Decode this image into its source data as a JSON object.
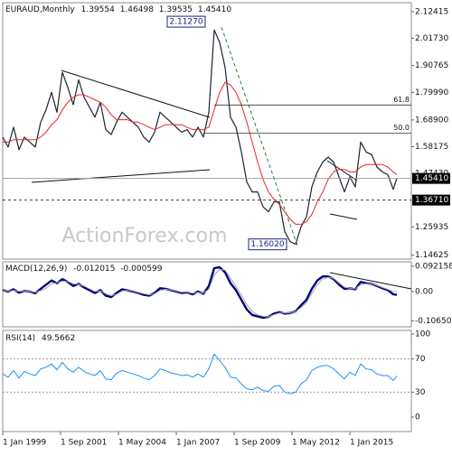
{
  "chart_data": {
    "type": "line",
    "title": "EURAUD,Monthly",
    "quote": [
      "1.39554",
      "1.46498",
      "1.39535",
      "1.45410"
    ],
    "watermark": "ActionForex.com",
    "x": [
      "1999-01",
      "1999-04",
      "1999-07",
      "1999-10",
      "2000-01",
      "2000-04",
      "2000-07",
      "2000-10",
      "2001-01",
      "2001-04",
      "2001-07",
      "2001-10",
      "2002-01",
      "2002-04",
      "2002-07",
      "2002-10",
      "2003-01",
      "2003-04",
      "2003-07",
      "2003-10",
      "2004-01",
      "2004-04",
      "2004-07",
      "2004-10",
      "2005-01",
      "2005-04",
      "2005-07",
      "2005-10",
      "2006-01",
      "2006-04",
      "2006-07",
      "2006-10",
      "2007-01",
      "2007-04",
      "2007-07",
      "2007-10",
      "2008-01",
      "2008-04",
      "2008-07",
      "2008-10",
      "2009-01",
      "2009-04",
      "2009-07",
      "2009-10",
      "2010-01",
      "2010-04",
      "2010-07",
      "2010-10",
      "2011-01",
      "2011-04",
      "2011-07",
      "2011-10",
      "2012-01",
      "2012-04",
      "2012-07",
      "2012-10",
      "2013-01",
      "2013-04",
      "2013-07",
      "2013-10",
      "2014-01",
      "2014-04",
      "2014-07",
      "2014-10",
      "2015-01",
      "2015-04",
      "2015-07",
      "2015-10",
      "2016-01",
      "2016-04",
      "2016-07",
      "2016-10",
      "2017-01",
      "2017-03"
    ],
    "xticks": [
      {
        "value": "1999-01",
        "label": "1 Jan 1999"
      },
      {
        "value": "2001-09",
        "label": "1 Sep 2001"
      },
      {
        "value": "2004-05",
        "label": "1 May 2004"
      },
      {
        "value": "2007-01",
        "label": "1 Jan 2007"
      },
      {
        "value": "2009-09",
        "label": "1 Sep 2009"
      },
      {
        "value": "2012-05",
        "label": "1 May 2012"
      },
      {
        "value": "2015-01",
        "label": "1 Jan 2015"
      }
    ],
    "ylim": [
      1.13,
      2.16
    ],
    "yticks": [
      2.12415,
      {
        "value": 2.0173,
        "label": "2.01730"
      },
      1.90765,
      {
        "value": 1.7999,
        "label": "1.79990"
      },
      {
        "value": 1.689,
        "label": "1.68900"
      },
      1.58175,
      {
        "value": 1.4743,
        "label": "1.47430"
      },
      1.25935,
      1.14625
    ],
    "series": [
      {
        "color": "#1b2430",
        "width": 1.2,
        "values": [
          1.62,
          1.58,
          1.66,
          1.57,
          1.62,
          1.6,
          1.58,
          1.68,
          1.73,
          1.8,
          1.72,
          1.88,
          1.82,
          1.75,
          1.85,
          1.78,
          1.74,
          1.7,
          1.76,
          1.65,
          1.63,
          1.68,
          1.72,
          1.7,
          1.68,
          1.66,
          1.62,
          1.6,
          1.64,
          1.72,
          1.7,
          1.68,
          1.66,
          1.64,
          1.65,
          1.62,
          1.66,
          1.62,
          1.72,
          2.05,
          2.0,
          1.9,
          1.7,
          1.66,
          1.56,
          1.44,
          1.4,
          1.4,
          1.34,
          1.32,
          1.36,
          1.36,
          1.24,
          1.2,
          1.19,
          1.26,
          1.3,
          1.42,
          1.48,
          1.52,
          1.54,
          1.52,
          1.46,
          1.4,
          1.46,
          1.42,
          1.6,
          1.56,
          1.55,
          1.5,
          1.48,
          1.47,
          1.41,
          1.4541
        ]
      },
      {
        "color": "#e8252b",
        "width": 1,
        "values": [
          1.6,
          1.6,
          1.61,
          1.61,
          1.61,
          1.61,
          1.61,
          1.62,
          1.64,
          1.67,
          1.69,
          1.73,
          1.76,
          1.78,
          1.79,
          1.79,
          1.78,
          1.77,
          1.76,
          1.74,
          1.71,
          1.69,
          1.69,
          1.69,
          1.68,
          1.68,
          1.67,
          1.66,
          1.65,
          1.66,
          1.67,
          1.67,
          1.67,
          1.67,
          1.66,
          1.65,
          1.65,
          1.65,
          1.66,
          1.73,
          1.8,
          1.84,
          1.83,
          1.8,
          1.75,
          1.68,
          1.6,
          1.52,
          1.45,
          1.4,
          1.37,
          1.35,
          1.32,
          1.29,
          1.27,
          1.27,
          1.28,
          1.31,
          1.36,
          1.4,
          1.45,
          1.48,
          1.49,
          1.49,
          1.48,
          1.48,
          1.5,
          1.51,
          1.51,
          1.51,
          1.51,
          1.5,
          1.48,
          1.47
        ]
      }
    ],
    "hlines": [
      {
        "value": 1.4541,
        "label": "1.45410",
        "color": "#a0a0a0",
        "dash": false
      },
      {
        "value": 1.3671,
        "label": "1.36710",
        "color": "#404040",
        "dash": true
      }
    ],
    "fib": [
      {
        "value": 1.749,
        "label": "61.8",
        "from": "2008-10"
      },
      {
        "value": 1.6365,
        "label": "50.0",
        "from": "2008-04"
      }
    ],
    "price_labels": [
      {
        "x": "2008-10",
        "value": 2.1127,
        "label": "2.11270"
      },
      {
        "x": "2012-07",
        "value": 1.1602,
        "label": "1.16020"
      }
    ],
    "macd": {
      "type": "line",
      "title": "MACD(12,26,9)",
      "readout": [
        -0.012015,
        -0.000599
      ],
      "ylim": [
        -0.128,
        0.108
      ],
      "yticks": [
        0.092158,
        {
          "value": 0,
          "label": "0.00"
        },
        -0.106503
      ],
      "series": [
        {
          "color": "#000080",
          "width": 2.4,
          "values": [
            0.005,
            0.0,
            0.008,
            -0.004,
            0.002,
            0.0,
            -0.006,
            0.01,
            0.025,
            0.04,
            0.03,
            0.045,
            0.035,
            0.02,
            0.028,
            0.015,
            0.005,
            -0.005,
            0.005,
            -0.015,
            -0.02,
            -0.005,
            0.008,
            0.004,
            0.0,
            -0.005,
            -0.012,
            -0.015,
            -0.005,
            0.012,
            0.01,
            0.005,
            0.0,
            -0.005,
            -0.003,
            -0.01,
            0.0,
            -0.008,
            0.02,
            0.085,
            0.088,
            0.07,
            0.03,
            0.005,
            -0.03,
            -0.065,
            -0.085,
            -0.09,
            -0.095,
            -0.092,
            -0.08,
            -0.075,
            -0.08,
            -0.078,
            -0.072,
            -0.05,
            -0.03,
            0.01,
            0.04,
            0.055,
            0.055,
            0.045,
            0.025,
            0.01,
            0.012,
            0.008,
            0.035,
            0.03,
            0.028,
            0.02,
            0.012,
            0.005,
            -0.01,
            -0.012015
          ]
        },
        {
          "color": "#a8a8a8",
          "width": 1,
          "values": [
            0.003,
            0.002,
            0.004,
            0.001,
            0.001,
            0.001,
            -0.002,
            0.003,
            0.012,
            0.028,
            0.032,
            0.038,
            0.037,
            0.028,
            0.026,
            0.02,
            0.01,
            0.0,
            0.002,
            -0.008,
            -0.015,
            -0.01,
            0.002,
            0.004,
            0.002,
            -0.003,
            -0.008,
            -0.012,
            -0.008,
            0.004,
            0.008,
            0.006,
            0.002,
            -0.002,
            -0.002,
            -0.006,
            -0.003,
            -0.005,
            0.008,
            0.06,
            0.08,
            0.078,
            0.048,
            0.018,
            -0.012,
            -0.048,
            -0.072,
            -0.085,
            -0.09,
            -0.092,
            -0.084,
            -0.078,
            -0.078,
            -0.077,
            -0.073,
            -0.058,
            -0.04,
            -0.008,
            0.025,
            0.045,
            0.052,
            0.048,
            0.032,
            0.016,
            0.012,
            0.01,
            0.025,
            0.028,
            0.028,
            0.022,
            0.015,
            0.008,
            0.0,
            -0.000599
          ]
        }
      ]
    },
    "rsi": {
      "type": "line",
      "title": "RSI(14)",
      "readout": [
        49.5662
      ],
      "ylim": [
        0,
        100
      ],
      "yticks": [
        100,
        70,
        30,
        0
      ],
      "levels": [
        70,
        30
      ],
      "series": [
        {
          "color": "#1e90ff",
          "width": 1,
          "values": [
            52,
            48,
            56,
            47,
            55,
            52,
            50,
            58,
            60,
            64,
            57,
            66,
            58,
            54,
            60,
            55,
            52,
            50,
            56,
            46,
            45,
            53,
            56,
            54,
            52,
            50,
            47,
            45,
            50,
            58,
            56,
            53,
            52,
            50,
            51,
            48,
            52,
            48,
            58,
            76,
            68,
            60,
            48,
            47,
            40,
            34,
            33,
            36,
            32,
            31,
            37,
            38,
            30,
            28,
            30,
            40,
            45,
            56,
            60,
            62,
            62,
            58,
            52,
            46,
            54,
            50,
            64,
            58,
            57,
            52,
            50,
            50,
            44,
            49.5662
          ]
        }
      ]
    }
  }
}
